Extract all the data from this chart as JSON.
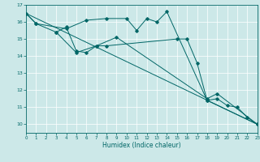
{
  "xlabel": "Humidex (Indice chaleur)",
  "xlim": [
    0,
    23
  ],
  "ylim": [
    9.5,
    17
  ],
  "yticks": [
    10,
    11,
    12,
    13,
    14,
    15,
    16,
    17
  ],
  "xticks": [
    0,
    1,
    2,
    3,
    4,
    5,
    6,
    7,
    8,
    9,
    10,
    11,
    12,
    13,
    14,
    15,
    16,
    17,
    18,
    19,
    20,
    21,
    22,
    23
  ],
  "bg_color": "#cce8e8",
  "line_color": "#006666",
  "grid_color": "#ffffff",
  "series": [
    {
      "x": [
        0,
        1,
        3,
        4,
        5,
        6,
        7,
        8,
        15,
        16,
        17,
        18,
        19,
        20,
        21,
        22,
        23
      ],
      "y": [
        16.5,
        15.9,
        15.4,
        15.7,
        14.3,
        14.2,
        14.6,
        14.6,
        15.0,
        15.0,
        13.6,
        11.4,
        11.5,
        11.1,
        11.0,
        10.4,
        10.0
      ],
      "markers": true
    },
    {
      "x": [
        0,
        1,
        4,
        6,
        8,
        10,
        11,
        12,
        13,
        14,
        18,
        23
      ],
      "y": [
        16.5,
        15.9,
        15.6,
        16.1,
        16.2,
        16.2,
        15.5,
        16.2,
        16.0,
        16.6,
        11.4,
        10.0
      ],
      "markers": true
    },
    {
      "x": [
        0,
        23
      ],
      "y": [
        16.5,
        10.0
      ],
      "markers": false
    },
    {
      "x": [
        3,
        5,
        7,
        9,
        18,
        19,
        23
      ],
      "y": [
        15.4,
        14.2,
        14.6,
        15.1,
        11.5,
        11.8,
        10.0
      ],
      "markers": true
    }
  ]
}
